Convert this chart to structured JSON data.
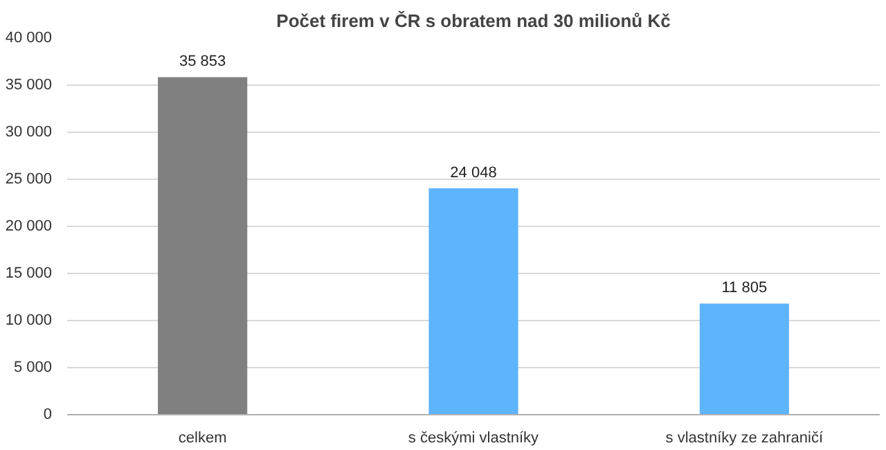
{
  "chart_data": {
    "type": "bar",
    "title": "Počet firem v ČR s obratem nad 30 milionů Kč",
    "categories": [
      "celkem",
      "s českými vlastníky",
      "s vlastníky ze zahraničí"
    ],
    "values": [
      35853,
      24048,
      11805
    ],
    "colors": [
      "#808080",
      "#5eb4fd",
      "#5eb4fd"
    ],
    "value_labels": [
      "35 853",
      "24 048",
      "11 805"
    ],
    "ylim": [
      0,
      40000
    ],
    "yticks": [
      0,
      {
        "value": 5000,
        "label": "5 000"
      },
      {
        "value": 10000,
        "label": "10 000"
      },
      {
        "value": 15000,
        "label": "15 000"
      },
      {
        "value": 20000,
        "label": "20 000"
      },
      {
        "value": 25000,
        "label": "25 000"
      },
      {
        "value": 30000,
        "label": "30 000"
      },
      {
        "value": 35000,
        "label": "35 000"
      },
      {
        "value": 40000,
        "label": "40 000"
      }
    ],
    "grid": "y"
  }
}
